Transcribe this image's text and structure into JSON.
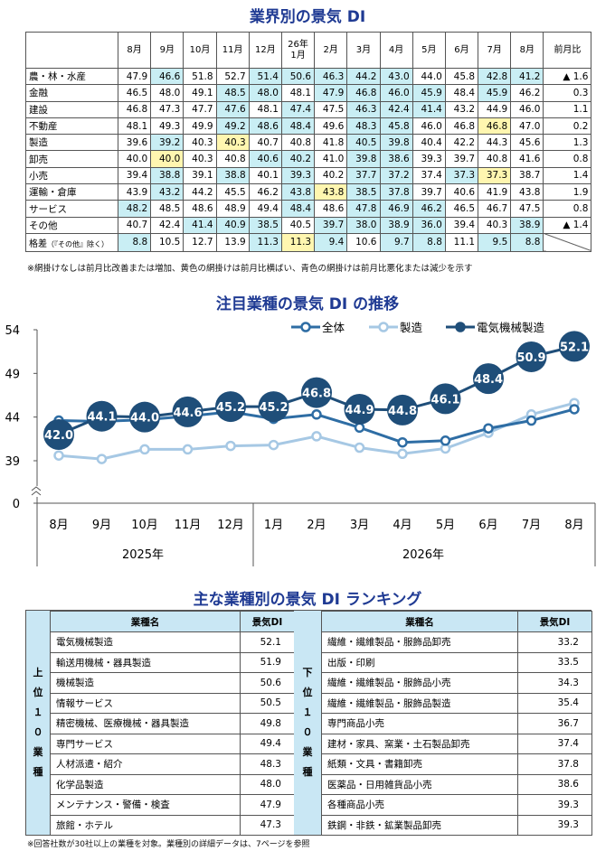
{
  "titles": {
    "table": "業界別の景気 DI",
    "chart": "注目業種の景気 DI の推移",
    "ranking": "主な業種別の景気 DI ランキング"
  },
  "industry_table": {
    "headers": [
      "8月",
      "9月",
      "10月",
      "11月",
      "12月",
      "26年\n1月",
      "2月",
      "3月",
      "4月",
      "5月",
      "6月",
      "7月",
      "8月",
      "前月比"
    ],
    "rows": [
      {
        "name": "農・林・水産",
        "values": [
          "47.9",
          "46.6",
          "51.8",
          "52.7",
          "51.4",
          "50.6",
          "46.3",
          "44.2",
          "43.0",
          "44.0",
          "45.8",
          "42.8",
          "41.2"
        ],
        "shade": [
          "",
          "b",
          "",
          "",
          "b",
          "b",
          "b",
          "b",
          "b",
          "",
          "",
          "b",
          "b"
        ],
        "diff": "▲ 1.6"
      },
      {
        "name": "金融",
        "values": [
          "46.5",
          "48.0",
          "49.1",
          "48.5",
          "48.0",
          "48.1",
          "47.9",
          "46.8",
          "46.0",
          "45.9",
          "48.4",
          "45.9",
          "46.2"
        ],
        "shade": [
          "",
          "",
          "",
          "b",
          "b",
          "",
          "b",
          "b",
          "b",
          "b",
          "",
          "b",
          ""
        ],
        "diff": "0.3"
      },
      {
        "name": "建設",
        "values": [
          "46.8",
          "47.3",
          "47.7",
          "47.6",
          "48.1",
          "47.4",
          "47.5",
          "46.3",
          "42.4",
          "41.4",
          "43.2",
          "44.9",
          "46.0"
        ],
        "shade": [
          "",
          "",
          "",
          "b",
          "",
          "b",
          "",
          "b",
          "b",
          "b",
          "",
          "",
          ""
        ],
        "diff": "1.1"
      },
      {
        "name": "不動産",
        "values": [
          "48.1",
          "49.3",
          "49.9",
          "49.2",
          "48.6",
          "48.4",
          "49.6",
          "48.3",
          "45.8",
          "46.0",
          "46.8",
          "46.8",
          "47.0"
        ],
        "shade": [
          "",
          "",
          "",
          "b",
          "b",
          "b",
          "",
          "b",
          "b",
          "",
          "",
          "y",
          ""
        ],
        "diff": "0.2"
      },
      {
        "name": "製造",
        "values": [
          "39.6",
          "39.2",
          "40.3",
          "40.3",
          "40.7",
          "40.8",
          "41.8",
          "40.5",
          "39.8",
          "40.4",
          "42.2",
          "44.3",
          "45.6"
        ],
        "shade": [
          "",
          "b",
          "",
          "y",
          "",
          "",
          "",
          "b",
          "b",
          "",
          "",
          "",
          ""
        ],
        "diff": "1.3"
      },
      {
        "name": "卸売",
        "values": [
          "40.0",
          "40.0",
          "40.3",
          "40.8",
          "40.6",
          "40.2",
          "41.0",
          "39.8",
          "38.6",
          "39.3",
          "39.7",
          "40.8",
          "41.6"
        ],
        "shade": [
          "",
          "y",
          "",
          "",
          "b",
          "b",
          "",
          "b",
          "b",
          "",
          "",
          "",
          ""
        ],
        "diff": "0.8"
      },
      {
        "name": "小売",
        "values": [
          "39.4",
          "38.8",
          "39.1",
          "38.8",
          "40.1",
          "39.3",
          "40.2",
          "37.7",
          "37.2",
          "37.4",
          "37.3",
          "37.3",
          "38.7"
        ],
        "shade": [
          "",
          "b",
          "",
          "b",
          "",
          "b",
          "",
          "b",
          "b",
          "",
          "b",
          "y",
          ""
        ],
        "diff": "1.4"
      },
      {
        "name": "運輸・倉庫",
        "values": [
          "43.9",
          "43.2",
          "44.2",
          "45.5",
          "46.2",
          "43.8",
          "43.8",
          "38.5",
          "37.8",
          "39.7",
          "40.6",
          "41.9",
          "43.8"
        ],
        "shade": [
          "",
          "b",
          "",
          "",
          "",
          "b",
          "y",
          "b",
          "b",
          "",
          "",
          "",
          ""
        ],
        "diff": "1.9"
      },
      {
        "name": "サービス",
        "values": [
          "48.2",
          "48.5",
          "48.6",
          "48.9",
          "49.4",
          "48.4",
          "48.6",
          "47.8",
          "46.9",
          "46.2",
          "46.5",
          "46.7",
          "47.5"
        ],
        "shade": [
          "b",
          "",
          "",
          "",
          "",
          "b",
          "",
          "b",
          "b",
          "b",
          "",
          "",
          ""
        ],
        "diff": "0.8"
      },
      {
        "name": "その他",
        "values": [
          "40.7",
          "42.4",
          "41.4",
          "40.9",
          "38.5",
          "40.5",
          "39.7",
          "38.0",
          "38.9",
          "36.0",
          "39.4",
          "40.3",
          "38.9"
        ],
        "shade": [
          "",
          "",
          "b",
          "b",
          "b",
          "",
          "b",
          "b",
          "b",
          "b",
          "",
          "",
          "b"
        ],
        "diff": "▲ 1.4"
      }
    ],
    "gap_row": {
      "label": "格差",
      "label_note": "（『その他』除く）",
      "values": [
        "8.8",
        "10.5",
        "12.7",
        "13.9",
        "11.3",
        "11.3",
        "9.4",
        "10.6",
        "9.7",
        "8.8",
        "11.1",
        "9.5",
        "8.8"
      ],
      "shade": [
        "b",
        "",
        "",
        "",
        "b",
        "y",
        "b",
        "",
        "b",
        "b",
        "",
        "b",
        "b"
      ]
    },
    "note": "※網掛けなしは前月比改善または増加、黄色の網掛けは前月比横ばい、青色の網掛けは前月比悪化または減少を示す"
  },
  "chart_data": {
    "type": "line",
    "title": "注目業種の景気 DI の推移",
    "x": [
      "8月",
      "9月",
      "10月",
      "11月",
      "12月",
      "1月",
      "2月",
      "3月",
      "4月",
      "5月",
      "6月",
      "7月",
      "8月"
    ],
    "year_labels": [
      "2025年",
      "2026年"
    ],
    "ylim": [
      0,
      54
    ],
    "yticks": [
      0,
      39,
      44,
      49,
      54
    ],
    "axis_break": true,
    "legend_position": "top-right",
    "series": [
      {
        "name": "全体",
        "values": [
          43.6,
          43.5,
          43.7,
          44.1,
          44.6,
          43.8,
          44.3,
          42.8,
          41.1,
          41.3,
          42.7,
          43.6,
          44.9
        ],
        "color": "#2e6da4"
      },
      {
        "name": "製造",
        "values": [
          39.6,
          39.2,
          40.3,
          40.3,
          40.7,
          40.8,
          41.8,
          40.5,
          39.8,
          40.4,
          42.2,
          44.3,
          45.6
        ],
        "color": "#a6c8e4"
      },
      {
        "name": "電気機械製造",
        "values": [
          42.0,
          44.1,
          44.0,
          44.6,
          45.2,
          45.2,
          46.8,
          44.9,
          44.8,
          46.1,
          48.4,
          50.9,
          52.1
        ],
        "color": "#1f4e79",
        "data_labels": [
          "42.0",
          "44.1",
          "44.0",
          "44.6",
          "45.2",
          "45.2",
          "46.8",
          "44.9",
          "44.8",
          "46.1",
          "48.4",
          "50.9",
          "52.1"
        ]
      }
    ]
  },
  "ranking": {
    "top_label": "上位10業種",
    "bottom_label": "下位10業種",
    "col_name": "業種名",
    "col_value": "景気DI",
    "top": [
      {
        "name": "電気機械製造",
        "value": "52.1"
      },
      {
        "name": "輸送用機械・器具製造",
        "value": "51.9"
      },
      {
        "name": "機械製造",
        "value": "50.6"
      },
      {
        "name": "情報サービス",
        "value": "50.5"
      },
      {
        "name": "精密機械、医療機械・器具製造",
        "value": "49.8"
      },
      {
        "name": "専門サービス",
        "value": "49.4"
      },
      {
        "name": "人材派遣・紹介",
        "value": "48.3"
      },
      {
        "name": "化学品製造",
        "value": "48.0"
      },
      {
        "name": "メンテナンス・警備・検査",
        "value": "47.9"
      },
      {
        "name": "旅館・ホテル",
        "value": "47.3"
      }
    ],
    "bottom": [
      {
        "name": "繊維・繊維製品・服飾品卸売",
        "value": "33.2"
      },
      {
        "name": "出版・印刷",
        "value": "33.5"
      },
      {
        "name": "繊維・繊維製品・服飾品小売",
        "value": "34.3"
      },
      {
        "name": "繊維・繊維製品・服飾品製造",
        "value": "35.4"
      },
      {
        "name": "専門商品小売",
        "value": "36.7"
      },
      {
        "name": "建材・家具、窯業・土石製品卸売",
        "value": "37.4"
      },
      {
        "name": "紙類・文具・書籍卸売",
        "value": "37.8"
      },
      {
        "name": "医薬品・日用雑貨品小売",
        "value": "38.6"
      },
      {
        "name": "各種商品小売",
        "value": "39.3"
      },
      {
        "name": "鉄鋼・非鉄・鉱業製品卸売",
        "value": "39.3"
      }
    ],
    "note": "※回答社数が30社以上の業種を対象。業種別の詳細データは、7ページを参照"
  }
}
